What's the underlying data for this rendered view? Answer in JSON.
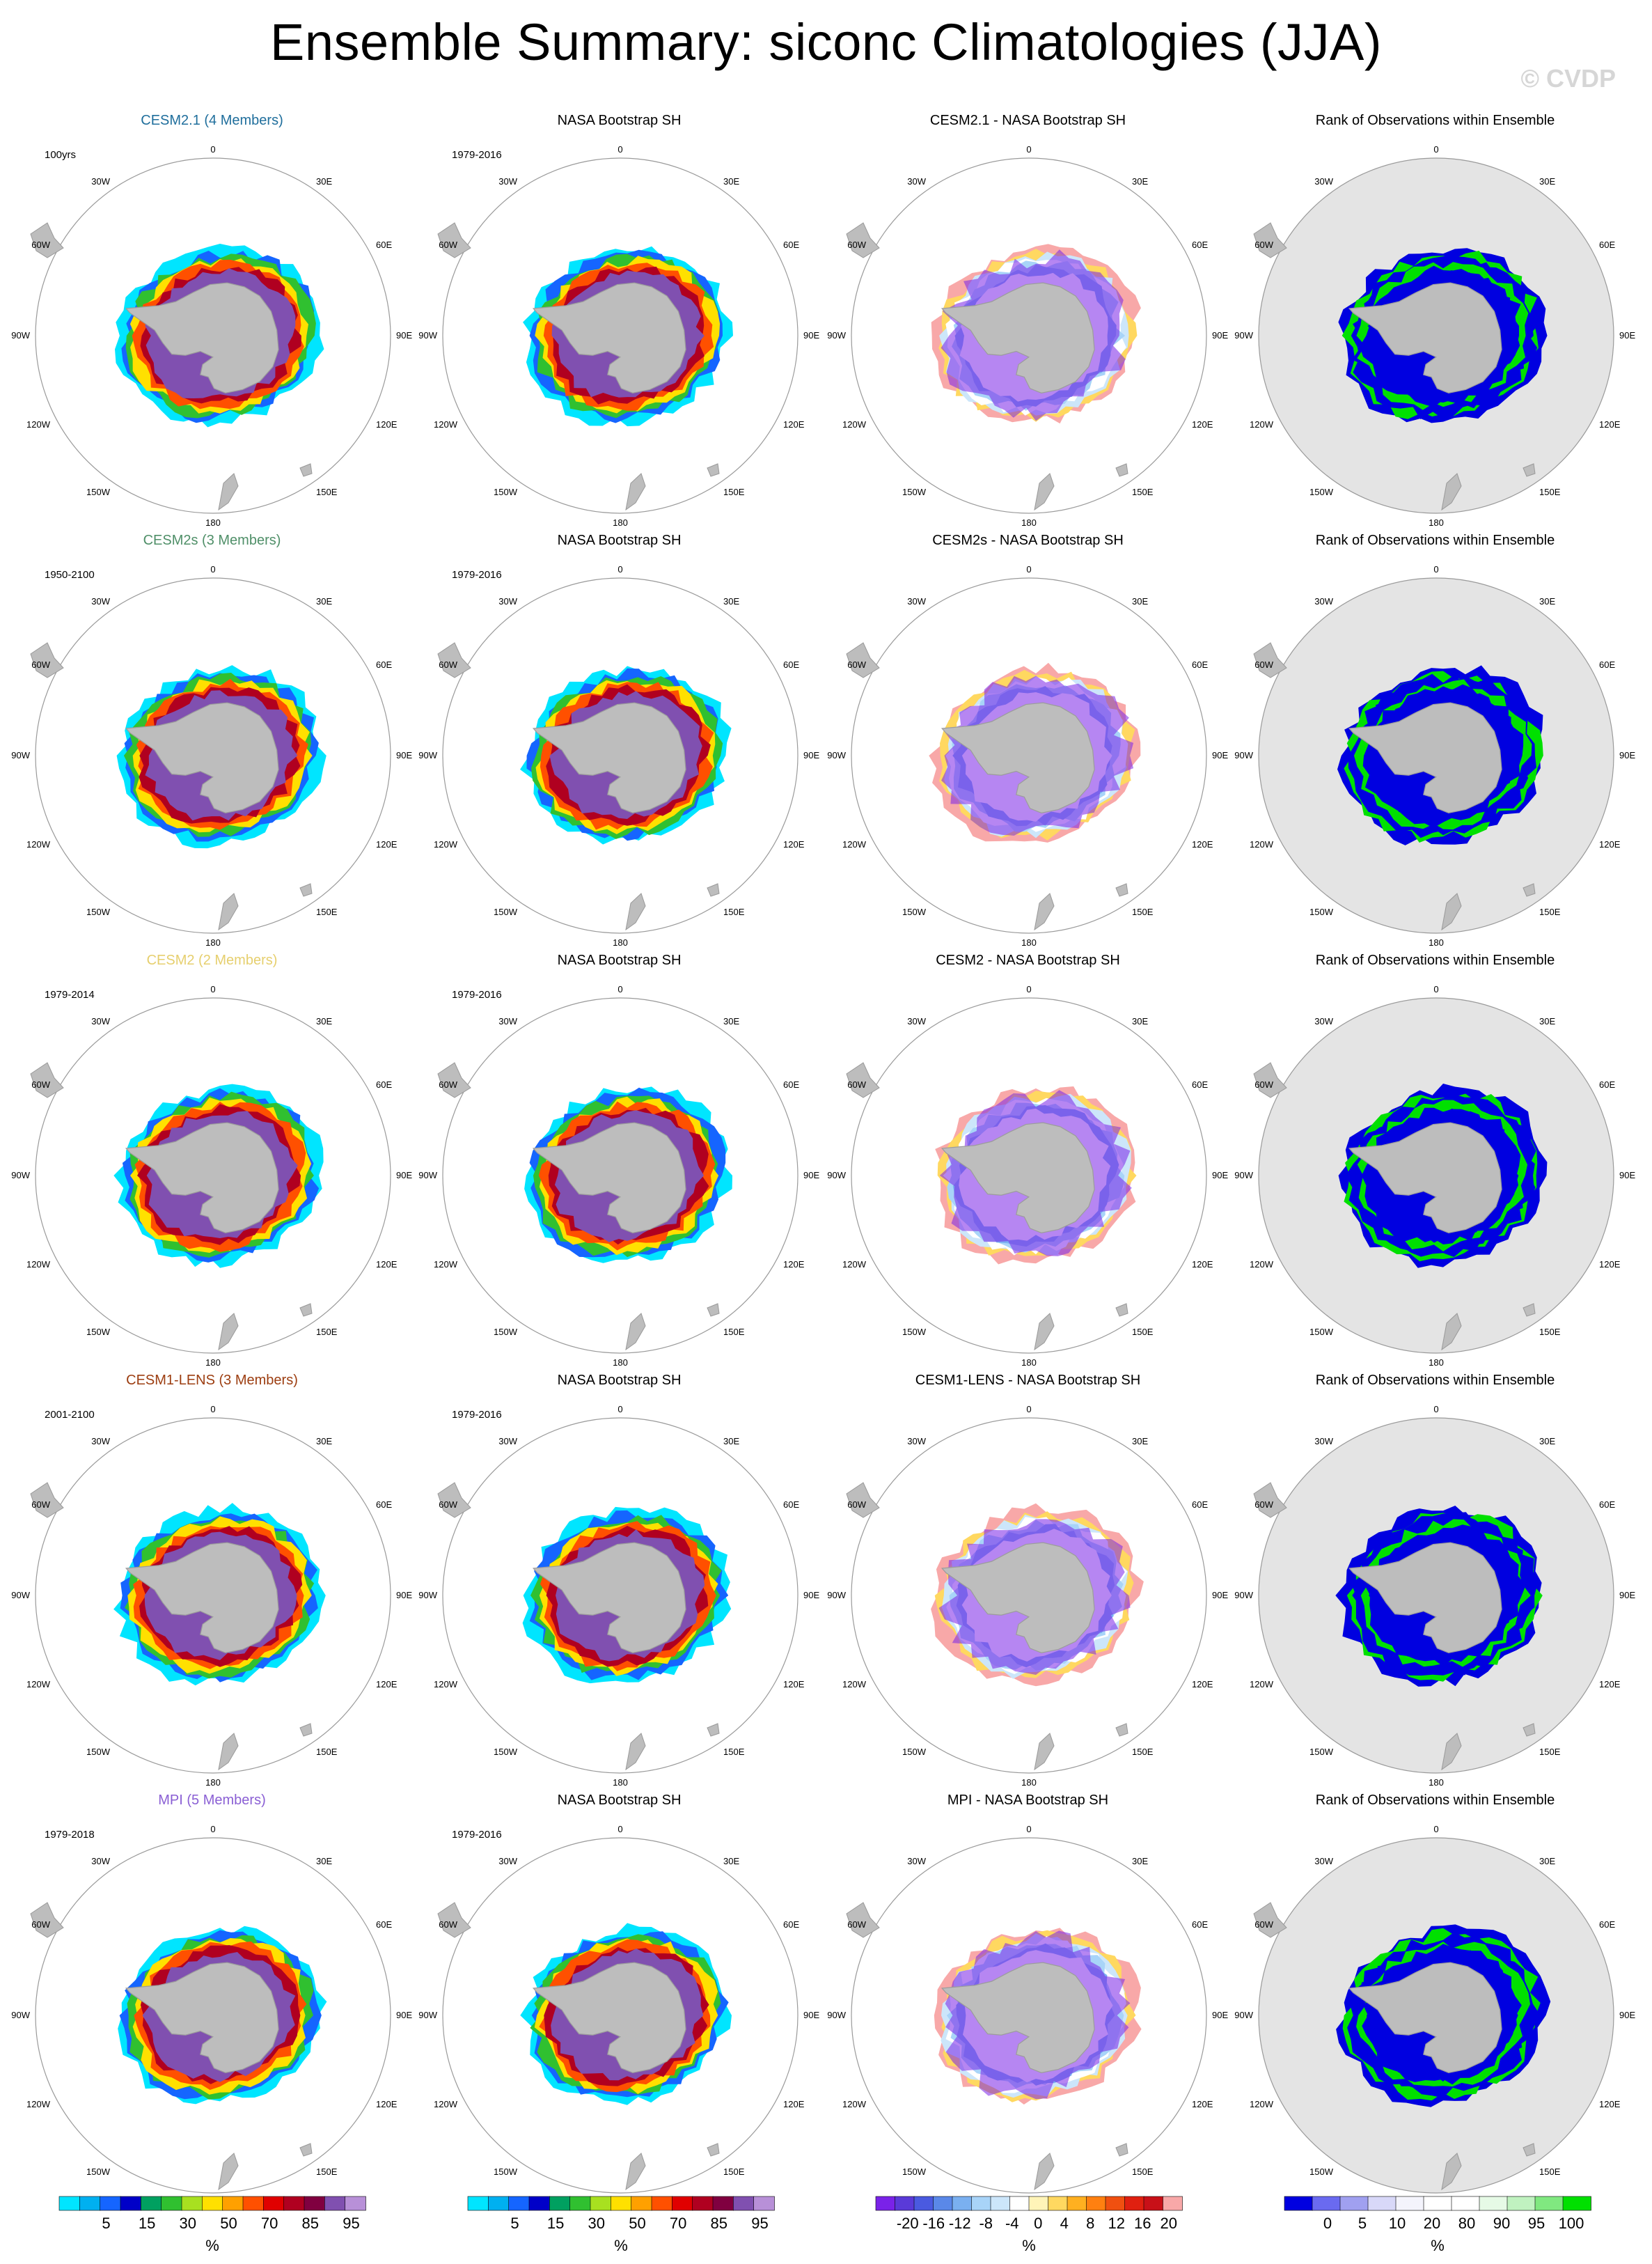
{
  "title": "Ensemble Summary: siconc Climatologies (JJA)",
  "watermark": "© CVDP",
  "panel_types": [
    "model",
    "obs",
    "diff",
    "rank"
  ],
  "map_labels": {
    "lat0": "0",
    "e30": "30E",
    "e60": "60E",
    "e90": "90E",
    "e120": "120E",
    "e150": "150E",
    "lat180": "180",
    "w150": "150W",
    "w120": "120W",
    "w90": "90W",
    "w60": "60W",
    "w30": "30W"
  },
  "rows": [
    {
      "model": {
        "title": "CESM2.1 (4 Members)",
        "color": "#1f6e9c",
        "period": "100yrs"
      },
      "obs": {
        "title": "NASA Bootstrap SH",
        "period": "1979-2016"
      },
      "diff": {
        "title": "CESM2.1 - NASA Bootstrap SH"
      },
      "rank": {
        "title": "Rank of Observations within Ensemble"
      }
    },
    {
      "model": {
        "title": "CESM2s (3 Members)",
        "color": "#4f8f68",
        "period": "1950-2100"
      },
      "obs": {
        "title": "NASA Bootstrap SH",
        "period": "1979-2016"
      },
      "diff": {
        "title": "CESM2s - NASA Bootstrap SH"
      },
      "rank": {
        "title": "Rank of Observations within Ensemble"
      }
    },
    {
      "model": {
        "title": "CESM2 (2 Members)",
        "color": "#e6cf6e",
        "period": "1979-2014"
      },
      "obs": {
        "title": "NASA Bootstrap SH",
        "period": "1979-2016"
      },
      "diff": {
        "title": "CESM2 - NASA Bootstrap SH"
      },
      "rank": {
        "title": "Rank of Observations within Ensemble"
      }
    },
    {
      "model": {
        "title": "CESM1-LENS (3 Members)",
        "color": "#9c3d10",
        "period": "2001-2100"
      },
      "obs": {
        "title": "NASA Bootstrap SH",
        "period": "1979-2016"
      },
      "diff": {
        "title": "CESM1-LENS - NASA Bootstrap SH"
      },
      "rank": {
        "title": "Rank of Observations within Ensemble"
      }
    },
    {
      "model": {
        "title": "MPI (5 Members)",
        "color": "#8a5fd4",
        "period": "1979-2018"
      },
      "obs": {
        "title": "NASA Bootstrap SH",
        "period": "1979-2016"
      },
      "diff": {
        "title": "MPI - NASA Bootstrap SH"
      },
      "rank": {
        "title": "Rank of Observations within Ensemble"
      }
    }
  ],
  "chart_data": {
    "type": "heatmap",
    "variable": "siconc",
    "season": "JJA",
    "region": "Southern Hemisphere (polar stereographic)",
    "colorbars": [
      {
        "id": "concentration",
        "unit": "%",
        "labels": [
          "5",
          "15",
          "30",
          "50",
          "70",
          "85",
          "95"
        ],
        "colors": [
          "#00e5ff",
          "#00b0f0",
          "#1565ff",
          "#0000c8",
          "#00a060",
          "#30c030",
          "#a8e020",
          "#ffe000",
          "#ffa000",
          "#ff5000",
          "#e00000",
          "#b00020",
          "#800040",
          "#8050b0",
          "#b890d8"
        ]
      },
      {
        "id": "concentration_obs",
        "unit": "%",
        "labels": [
          "5",
          "15",
          "30",
          "50",
          "70",
          "85",
          "95"
        ],
        "colors": [
          "#00e5ff",
          "#00b0f0",
          "#1565ff",
          "#0000c8",
          "#00a060",
          "#30c030",
          "#a8e020",
          "#ffe000",
          "#ffa000",
          "#ff5000",
          "#e00000",
          "#b00020",
          "#800040",
          "#8050b0",
          "#b890d8"
        ]
      },
      {
        "id": "difference",
        "unit": "%",
        "labels": [
          "-20",
          "-16",
          "-12",
          "-8",
          "-4",
          "0",
          "4",
          "8",
          "12",
          "16",
          "20"
        ],
        "colors": [
          "#7a22e8",
          "#5a3ad8",
          "#4a5ae0",
          "#5a88e8",
          "#7ab0f0",
          "#a8d4f8",
          "#cce6fa",
          "#ffffff",
          "#fff4b8",
          "#ffd860",
          "#ffb020",
          "#ff8010",
          "#f05010",
          "#e02010",
          "#c81018",
          "#f8a8a8"
        ]
      },
      {
        "id": "rank",
        "unit": "%",
        "labels": [
          "0",
          "5",
          "10",
          "20",
          "80",
          "90",
          "95",
          "100"
        ],
        "colors": [
          "#0000e0",
          "#6a6af0",
          "#a0a0f0",
          "#d8d8f8",
          "#f4f4fc",
          "#ffffff",
          "#ffffff",
          "#e6fae6",
          "#c0f2c0",
          "#80e880",
          "#00e000"
        ]
      }
    ]
  }
}
